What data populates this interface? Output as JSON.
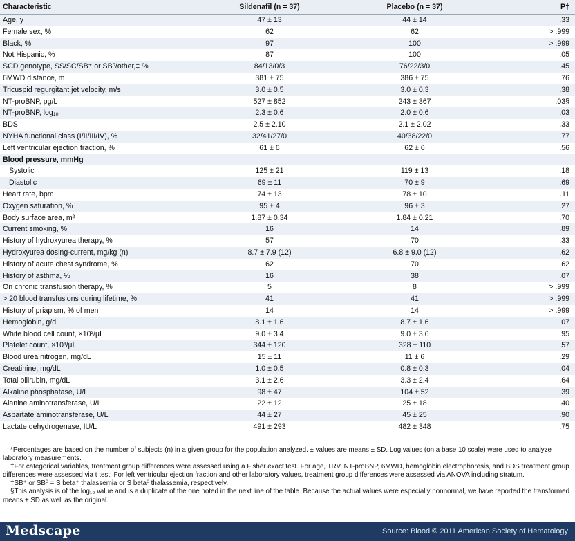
{
  "table": {
    "headers": [
      "Characteristic",
      "Sildenafil (n = 37)",
      "Placebo (n = 37)",
      "P†"
    ],
    "rows": [
      {
        "label": "Age, y",
        "sil": "47 ± 13",
        "pla": "44 ± 14",
        "p": ".33"
      },
      {
        "label": "Female sex, %",
        "sil": "62",
        "pla": "62",
        "p": "> .999"
      },
      {
        "label": "Black, %",
        "sil": "97",
        "pla": "100",
        "p": "> .999"
      },
      {
        "label": "Not Hispanic, %",
        "sil": "87",
        "pla": "100",
        "p": ".05"
      },
      {
        "label": "SCD genotype, SS/SC/SB⁺ or SB⁰/other,‡ %",
        "sil": "84/13/0/3",
        "pla": "76/22/3/0",
        "p": ".45"
      },
      {
        "label": "6MWD distance, m",
        "sil": "381 ± 75",
        "pla": "386 ± 75",
        "p": ".76"
      },
      {
        "label": "Tricuspid regurgitant jet velocity, m/s",
        "sil": "3.0 ± 0.5",
        "pla": "3.0 ± 0.3",
        "p": ".38"
      },
      {
        "label": "NT-proBNP, pg/L",
        "sil": "527 ± 852",
        "pla": "243 ± 367",
        "p": ".03§"
      },
      {
        "label": "NT-proBNP, log₁₀",
        "sil": "2.3 ± 0.6",
        "pla": "2.0 ± 0.6",
        "p": ".03"
      },
      {
        "label": "BDS",
        "sil": "2.5 ± 2.10",
        "pla": "2.1 ± 2.02",
        "p": ".33"
      },
      {
        "label": "NYHA functional class (I/II/III/IV), %",
        "sil": "32/41/27/0",
        "pla": "40/38/22/0",
        "p": ".77"
      },
      {
        "label": "Left ventricular ejection fraction, %",
        "sil": "61 ± 6",
        "pla": "62 ± 6",
        "p": ".56"
      },
      {
        "label": "Blood pressure, mmHg",
        "sil": "",
        "pla": "",
        "p": "",
        "section": true
      },
      {
        "label": "Systolic",
        "sil": "125 ± 21",
        "pla": "119 ± 13",
        "p": ".18",
        "indent": true
      },
      {
        "label": "Diastolic",
        "sil": "69 ± 11",
        "pla": "70 ± 9",
        "p": ".69",
        "indent": true
      },
      {
        "label": "Heart rate, bpm",
        "sil": "74 ± 13",
        "pla": "78 ± 10",
        "p": ".11"
      },
      {
        "label": "Oxygen saturation, %",
        "sil": "95 ± 4",
        "pla": "96 ± 3",
        "p": ".27"
      },
      {
        "label": "Body surface area, m²",
        "sil": "1.87 ± 0.34",
        "pla": "1.84 ± 0.21",
        "p": ".70"
      },
      {
        "label": "Current smoking, %",
        "sil": "16",
        "pla": "14",
        "p": ".89"
      },
      {
        "label": "History of hydroxyurea therapy, %",
        "sil": "57",
        "pla": "70",
        "p": ".33"
      },
      {
        "label": "Hydroxyurea dosing-current, mg/kg (n)",
        "sil": "8.7 ± 7.9 (12)",
        "pla": "6.8 ± 9.0 (12)",
        "p": ".62"
      },
      {
        "label": "History of acute chest syndrome, %",
        "sil": "62",
        "pla": "70",
        "p": ".62"
      },
      {
        "label": "History of asthma, %",
        "sil": "16",
        "pla": "38",
        "p": ".07"
      },
      {
        "label": "On chronic transfusion therapy, %",
        "sil": "5",
        "pla": "8",
        "p": "> .999"
      },
      {
        "label": "> 20 blood transfusions during lifetime, %",
        "sil": "41",
        "pla": "41",
        "p": "> .999"
      },
      {
        "label": "History of priapism, % of men",
        "sil": "14",
        "pla": "14",
        "p": "> .999"
      },
      {
        "label": "Hemoglobin, g/dL",
        "sil": "8.1 ± 1.6",
        "pla": "8.7 ± 1.6",
        "p": ".07"
      },
      {
        "label": "White blood cell count, ×10³/µL",
        "sil": "9.0 ± 3.4",
        "pla": "9.0 ± 3.6",
        "p": ".95"
      },
      {
        "label": "Platelet count, ×10³/µL",
        "sil": "344 ± 120",
        "pla": "328 ± 110",
        "p": ".57"
      },
      {
        "label": "Blood urea nitrogen, mg/dL",
        "sil": "15 ± 11",
        "pla": "11 ± 6",
        "p": ".29"
      },
      {
        "label": "Creatinine, mg/dL",
        "sil": "1.0 ± 0.5",
        "pla": "0.8 ± 0.3",
        "p": ".04"
      },
      {
        "label": "Total bilirubin, mg/dL",
        "sil": "3.1 ± 2.6",
        "pla": "3.3 ± 2.4",
        "p": ".64"
      },
      {
        "label": "Alkaline phosphatase, U/L",
        "sil": "98 ± 47",
        "pla": "104 ± 52",
        "p": ".39"
      },
      {
        "label": "Alanine aminotransferase, U/L",
        "sil": "22 ± 12",
        "pla": "25 ± 18",
        "p": ".40"
      },
      {
        "label": "Aspartate aminotransferase, U/L",
        "sil": "44 ± 27",
        "pla": "45 ± 25",
        "p": ".90"
      },
      {
        "label": "Lactate dehydrogenase, IU/L",
        "sil": "491 ± 293",
        "pla": "482 ± 348",
        "p": ".75"
      }
    ]
  },
  "notes": [
    "*Percentages are based on the number of subjects (n) in a given group for the population analyzed. ± values are means ± SD. Log values (on a base 10 scale) were used to analyze laboratory measurements.",
    "†For categorical variables, treatment group differences were assessed using a Fisher exact test. For age, TRV, NT-proBNP, 6MWD, hemoglobin electrophoresis, and BDS treatment group differences were assessed via t test. For left ventricular ejection fraction and other laboratory values, treatment group differences were assessed via ANOVA including stratum.",
    "‡SB⁺ or SB⁰ = S beta⁺ thalassemia or S beta⁰ thalassemia, respectively.",
    "§This analysis is of the log₁₀ value and is a duplicate of the one noted in the next line of the table. Because the actual values were especially nonnormal, we have reported the transformed means ± SD as well as the original."
  ],
  "footer": {
    "logo": "Medscape",
    "source": "Source: Blood © 2011 American Society of Hematology",
    "color": "#1f3b63"
  }
}
